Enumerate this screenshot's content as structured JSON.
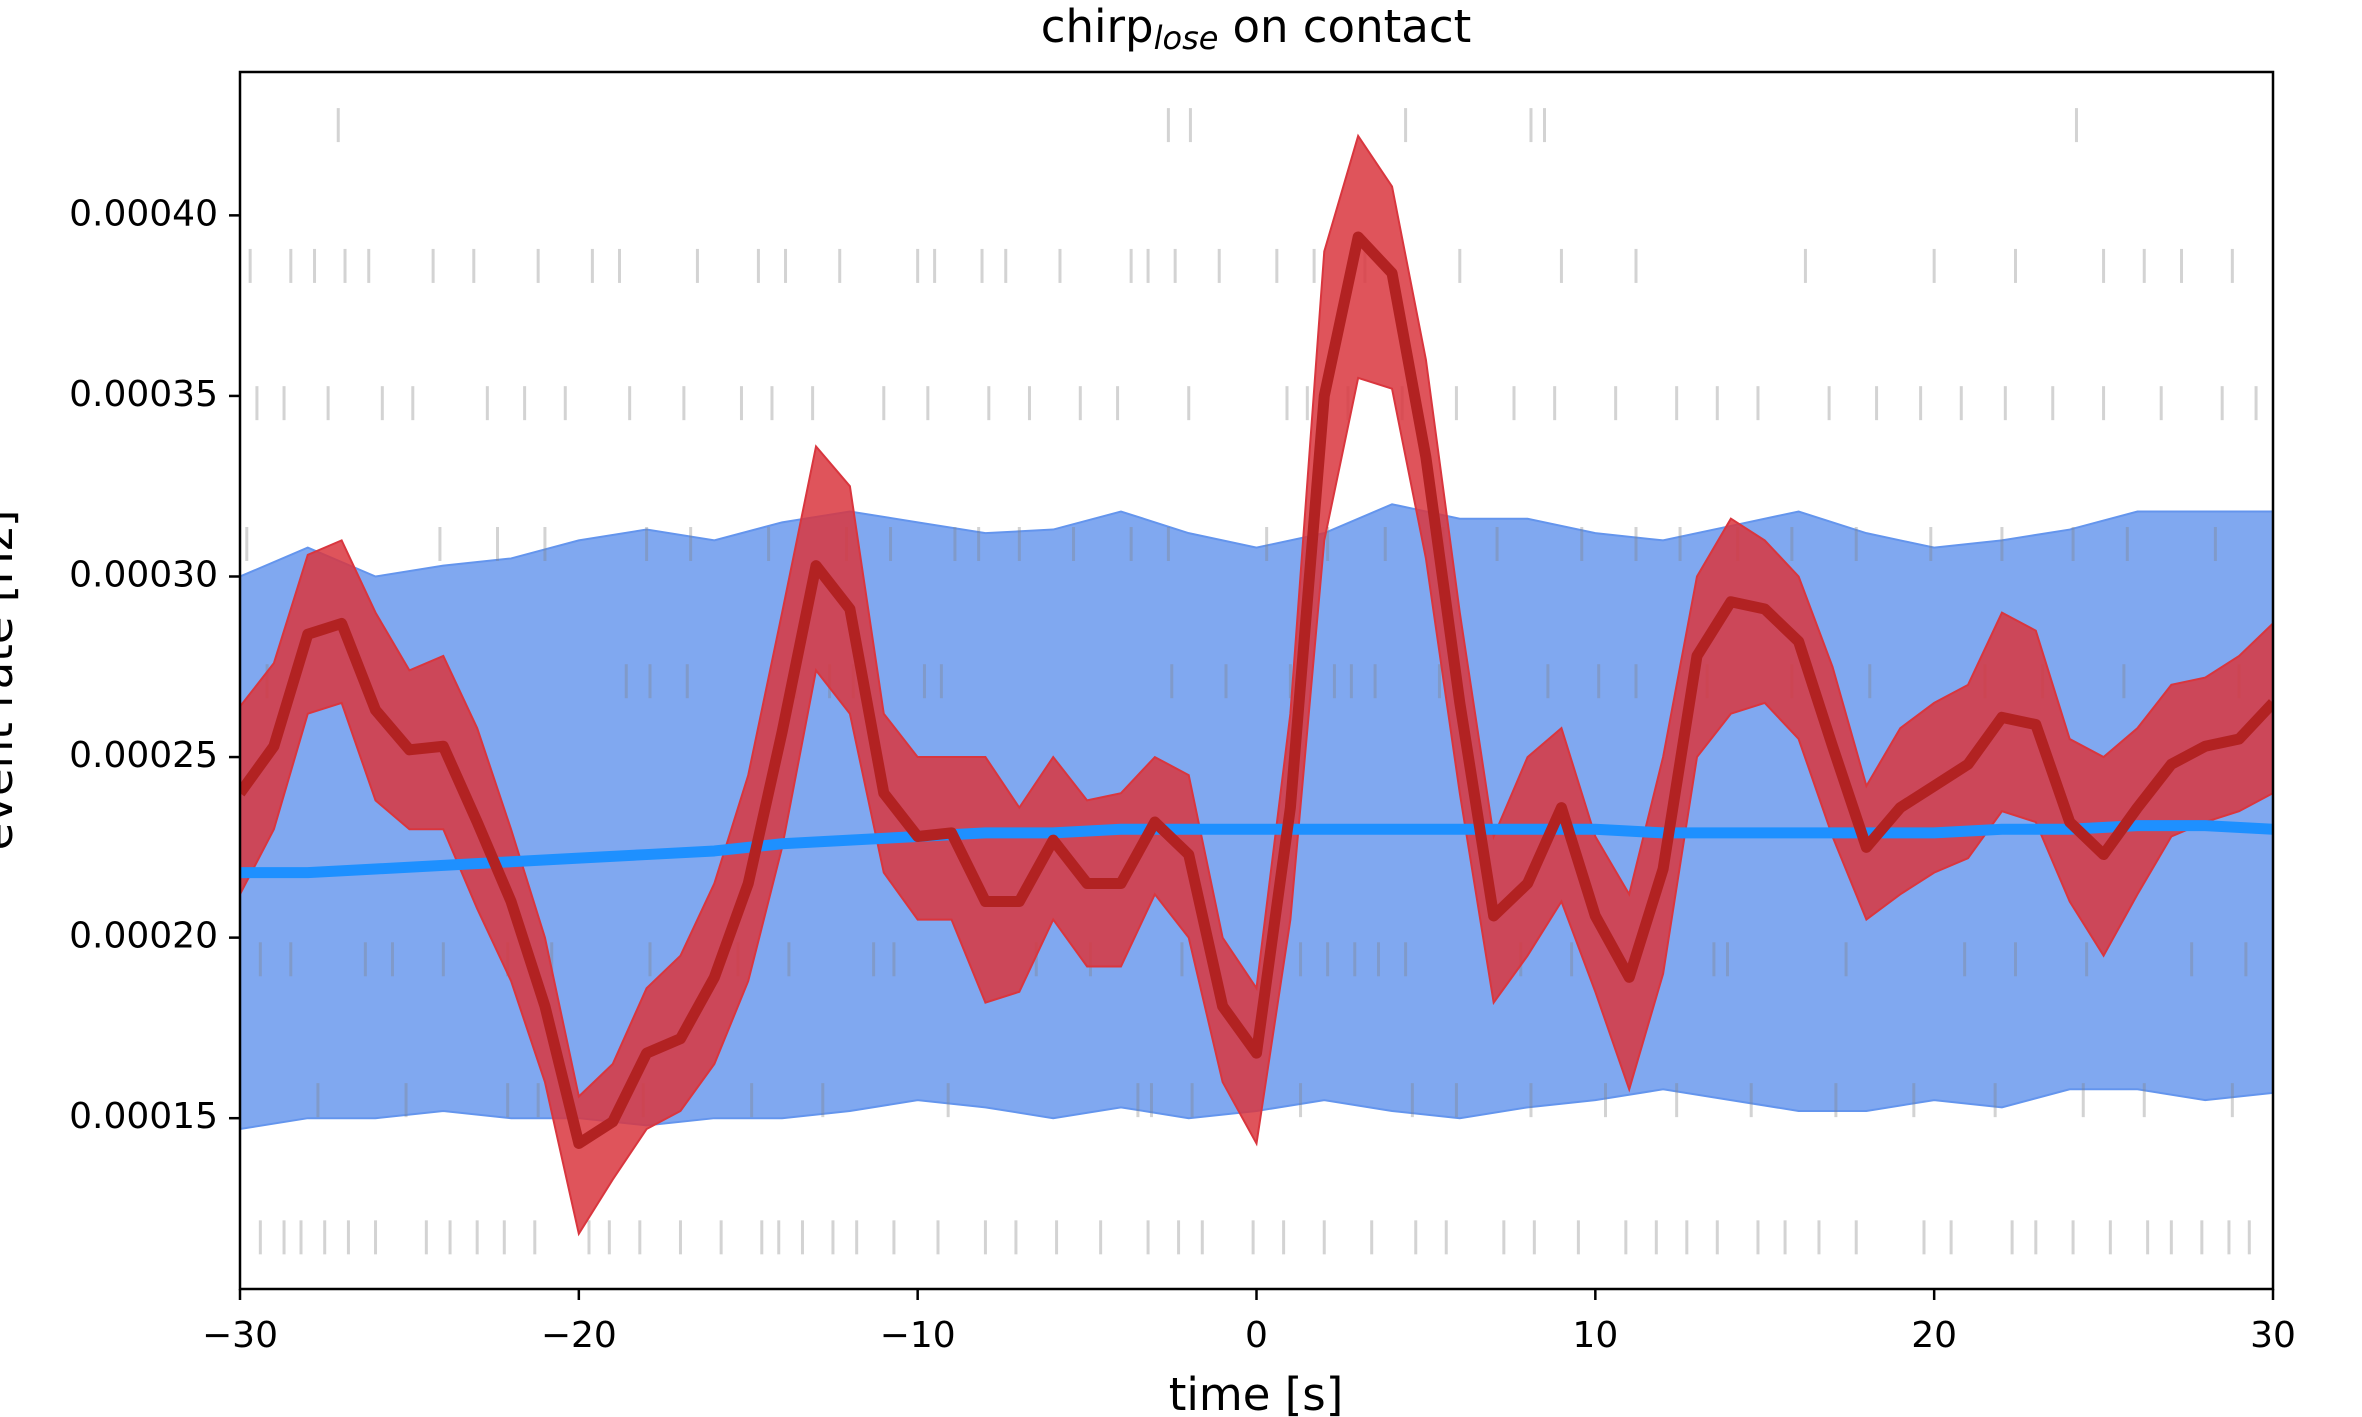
{
  "chart_data": {
    "type": "line",
    "title": "chirp",
    "title_subscript": "lose",
    "title_suffix": "on contact",
    "xlabel": "time [s]",
    "ylabel": "event rate [Hz]",
    "xlim": [
      -30,
      30
    ],
    "ylim": [
      0.0001027,
      0.0004397
    ],
    "xticks": [
      {
        "value": -30,
        "label": "−30"
      },
      {
        "value": -20,
        "label": "−20"
      },
      {
        "value": -10,
        "label": "−10"
      },
      0,
      10,
      20,
      30
    ],
    "yticks": [
      0.00015,
      {
        "value": 0.0002,
        "label": "0.00020"
      },
      0.00025,
      {
        "value": 0.0003,
        "label": "0.00030"
      },
      0.00035,
      {
        "value": 0.0004,
        "label": "0.00040"
      }
    ],
    "raster": {
      "color": "#808080",
      "rows": [
        {
          "y": 0.000425,
          "times": [
            -27.1,
            -2.6,
            -1.95,
            4.4,
            8.1,
            8.5,
            24.2
          ]
        },
        {
          "y": 0.000386,
          "times": [
            -29.7,
            -28.5,
            -27.8,
            -26.9,
            -26.2,
            -24.3,
            -23.1,
            -21.2,
            -19.6,
            -18.8,
            -16.5,
            -14.7,
            -13.9,
            -12.3,
            -10.0,
            -9.5,
            -8.1,
            -7.4,
            -5.8,
            -3.7,
            -3.2,
            -2.4,
            -1.1,
            0.6,
            1.7,
            3.2,
            6.0,
            9.0,
            11.2,
            16.2,
            20.0,
            22.4,
            25.0,
            26.2,
            27.3,
            28.8
          ]
        },
        {
          "y": 0.000348,
          "times": [
            -29.5,
            -28.7,
            -27.4,
            -25.8,
            -24.9,
            -22.7,
            -21.6,
            -20.4,
            -18.5,
            -16.9,
            -15.2,
            -14.3,
            -13.1,
            -11.0,
            -9.7,
            -7.9,
            -6.7,
            -5.2,
            -4.1,
            -2.0,
            0.9,
            1.5,
            2.7,
            4.3,
            5.9,
            7.6,
            8.8,
            10.6,
            12.4,
            13.6,
            14.8,
            16.9,
            18.3,
            19.6,
            20.8,
            22.1,
            23.5,
            25.0,
            26.7,
            28.5,
            29.5
          ]
        },
        {
          "y": 0.000309,
          "times": [
            -29.8,
            -24.1,
            -22.4,
            -21.0,
            -18.0,
            -16.7,
            -14.4,
            -12.1,
            -10.8,
            -8.9,
            -8.2,
            -7.0,
            -5.4,
            -3.7,
            -2.6,
            0.3,
            2.1,
            3.8,
            5.5,
            7.1,
            9.6,
            11.2,
            12.5,
            14.2,
            15.8,
            17.7,
            19.9,
            22.0,
            24.1,
            25.7,
            28.3
          ]
        },
        {
          "y": 0.000271,
          "times": [
            -29.2,
            -18.6,
            -17.9,
            -16.8,
            -13.6,
            -12.6,
            -11.9,
            -9.8,
            -9.3,
            -2.5,
            -0.9,
            1.0,
            2.3,
            2.8,
            3.5,
            5.4,
            8.6,
            10.1,
            11.2,
            13.3,
            15.8,
            18.1,
            21.5,
            23.2,
            25.6,
            29.0
          ]
        },
        {
          "y": 0.000194,
          "times": [
            -29.4,
            -28.5,
            -26.3,
            -25.5,
            -24.0,
            -22.1,
            -20.8,
            -17.9,
            -15.3,
            -13.8,
            -11.3,
            -10.7,
            -6.5,
            -4.9,
            -2.2,
            1.3,
            2.1,
            2.9,
            3.6,
            4.4,
            7.8,
            9.3,
            13.5,
            13.9,
            17.4,
            20.9,
            22.4,
            24.5,
            27.6,
            29.2
          ]
        },
        {
          "y": 0.000155,
          "times": [
            -27.7,
            -25.1,
            -22.1,
            -21.2,
            -18.1,
            -14.9,
            -12.8,
            -9.1,
            -3.5,
            -3.1,
            -1.9,
            1.3,
            4.6,
            5.9,
            8.1,
            10.3,
            12.4,
            14.6,
            17.1,
            19.4,
            21.8,
            24.4,
            26.2,
            28.8
          ]
        },
        {
          "y": 0.000117,
          "times": [
            -29.4,
            -28.7,
            -28.2,
            -27.5,
            -26.8,
            -26.0,
            -24.5,
            -23.8,
            -23.0,
            -22.2,
            -21.3,
            -19.7,
            -19.1,
            -18.2,
            -17.0,
            -15.8,
            -14.6,
            -14.1,
            -13.4,
            -12.5,
            -11.8,
            -10.7,
            -9.4,
            -8.0,
            -7.1,
            -5.9,
            -4.6,
            -3.2,
            -2.3,
            -1.6,
            -0.1,
            0.8,
            2.0,
            3.4,
            4.7,
            5.6,
            7.3,
            8.2,
            9.5,
            10.9,
            11.8,
            12.7,
            13.6,
            14.8,
            15.6,
            16.6,
            17.7,
            19.7,
            20.5,
            22.3,
            23.0,
            24.1,
            25.2,
            26.3,
            27.0,
            27.9,
            28.7,
            29.3
          ]
        }
      ]
    },
    "series": [
      {
        "color": "#1e90ff",
        "band_color": "#6495ed",
        "x": [
          -30,
          -28,
          -26,
          -24,
          -22,
          -20,
          -18,
          -16,
          -14,
          -12,
          -10,
          -8,
          -6,
          -4,
          -2,
          0,
          2,
          4,
          6,
          8,
          10,
          12,
          14,
          16,
          18,
          20,
          22,
          24,
          26,
          28,
          30
        ],
        "values": [
          0.000218,
          0.000218,
          0.000219,
          0.00022,
          0.000221,
          0.000222,
          0.000223,
          0.000224,
          0.000226,
          0.000227,
          0.000228,
          0.000229,
          0.000229,
          0.00023,
          0.00023,
          0.00023,
          0.00023,
          0.00023,
          0.00023,
          0.00023,
          0.00023,
          0.000229,
          0.000229,
          0.000229,
          0.000229,
          0.000229,
          0.00023,
          0.00023,
          0.000231,
          0.000231,
          0.00023
        ],
        "upper": [
          0.0003,
          0.000308,
          0.0003,
          0.000303,
          0.000305,
          0.00031,
          0.000313,
          0.00031,
          0.000315,
          0.000318,
          0.000315,
          0.000312,
          0.000313,
          0.000318,
          0.000312,
          0.000308,
          0.000312,
          0.00032,
          0.000316,
          0.000316,
          0.000312,
          0.00031,
          0.000314,
          0.000318,
          0.000312,
          0.000308,
          0.00031,
          0.000313,
          0.000318,
          0.000318,
          0.000318
        ],
        "lower": [
          0.000147,
          0.00015,
          0.00015,
          0.000152,
          0.00015,
          0.00015,
          0.000148,
          0.00015,
          0.00015,
          0.000152,
          0.000155,
          0.000153,
          0.00015,
          0.000153,
          0.00015,
          0.000152,
          0.000155,
          0.000152,
          0.00015,
          0.000153,
          0.000155,
          0.000158,
          0.000155,
          0.000152,
          0.000152,
          0.000155,
          0.000153,
          0.000158,
          0.000158,
          0.000155,
          0.000157
        ]
      },
      {
        "color": "#b22222",
        "band_color": "#d9363e",
        "x": [
          -30,
          -29,
          -28,
          -27,
          -26,
          -25,
          -24,
          -23,
          -22,
          -21,
          -20,
          -19,
          -18,
          -17,
          -16,
          -15,
          -14,
          -13,
          -12,
          -11,
          -10,
          -9,
          -8,
          -7,
          -6,
          -5,
          -4,
          -3,
          -2,
          -1,
          0,
          1,
          2,
          3,
          4,
          5,
          6,
          7,
          8,
          9,
          10,
          11,
          12,
          13,
          14,
          15,
          16,
          17,
          18,
          19,
          20,
          21,
          22,
          23,
          24,
          25,
          26,
          27,
          28,
          29,
          30
        ],
        "values": [
          0.00024,
          0.000253,
          0.000284,
          0.000287,
          0.000263,
          0.000252,
          0.000253,
          0.000232,
          0.00021,
          0.000181,
          0.000143,
          0.000149,
          0.000168,
          0.000172,
          0.000189,
          0.000215,
          0.000257,
          0.000303,
          0.000291,
          0.00024,
          0.000228,
          0.000229,
          0.00021,
          0.00021,
          0.000227,
          0.000215,
          0.000215,
          0.000232,
          0.000223,
          0.000181,
          0.000168,
          0.000236,
          0.00035,
          0.000394,
          0.000384,
          0.000333,
          0.000265,
          0.000206,
          0.000215,
          0.000236,
          0.000206,
          0.000189,
          0.000219,
          0.000278,
          0.000293,
          0.000291,
          0.000282,
          0.000253,
          0.000225,
          0.000236,
          0.000242,
          0.000248,
          0.000261,
          0.000259,
          0.000232,
          0.000223,
          0.000236,
          0.000248,
          0.000253,
          0.000255,
          0.000265
        ],
        "upper": [
          0.000264,
          0.000276,
          0.000306,
          0.00031,
          0.00029,
          0.000274,
          0.000278,
          0.000258,
          0.00023,
          0.0002,
          0.000156,
          0.000165,
          0.000186,
          0.000195,
          0.000215,
          0.000245,
          0.00029,
          0.000336,
          0.000325,
          0.000262,
          0.00025,
          0.00025,
          0.00025,
          0.000236,
          0.00025,
          0.000238,
          0.00024,
          0.00025,
          0.000245,
          0.0002,
          0.000186,
          0.000262,
          0.00039,
          0.000422,
          0.000408,
          0.00036,
          0.00029,
          0.000228,
          0.00025,
          0.000258,
          0.000228,
          0.000212,
          0.00025,
          0.0003,
          0.000316,
          0.00031,
          0.0003,
          0.000275,
          0.000242,
          0.000258,
          0.000265,
          0.00027,
          0.00029,
          0.000285,
          0.000255,
          0.00025,
          0.000258,
          0.00027,
          0.000272,
          0.000278,
          0.000287
        ],
        "lower": [
          0.000212,
          0.00023,
          0.000262,
          0.000265,
          0.000238,
          0.00023,
          0.00023,
          0.000208,
          0.000188,
          0.00016,
          0.000118,
          0.000133,
          0.000147,
          0.000152,
          0.000165,
          0.000188,
          0.000225,
          0.000274,
          0.000262,
          0.000218,
          0.000205,
          0.000205,
          0.000182,
          0.000185,
          0.000205,
          0.000192,
          0.000192,
          0.000212,
          0.0002,
          0.00016,
          0.000143,
          0.000205,
          0.00031,
          0.000355,
          0.000352,
          0.000305,
          0.00024,
          0.000182,
          0.000195,
          0.00021,
          0.000185,
          0.000158,
          0.00019,
          0.00025,
          0.000262,
          0.000265,
          0.000255,
          0.000228,
          0.000205,
          0.000212,
          0.000218,
          0.000222,
          0.000235,
          0.000232,
          0.00021,
          0.000195,
          0.000212,
          0.000228,
          0.000232,
          0.000235,
          0.00024
        ]
      }
    ]
  }
}
